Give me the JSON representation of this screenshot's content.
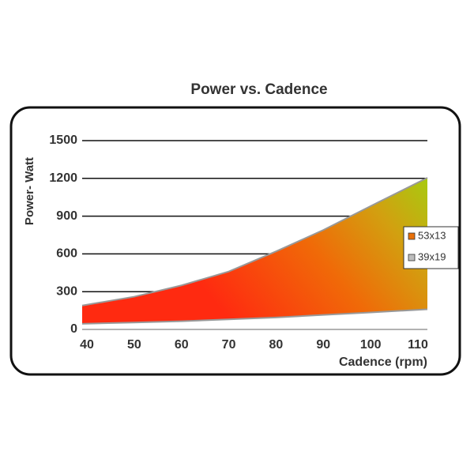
{
  "chart_data": {
    "type": "area-range",
    "title": "Power vs. Cadence",
    "x_label": "Cadence (rpm)",
    "y_label": "Power- Watt",
    "x": [
      39,
      50,
      60,
      70,
      80,
      90,
      100,
      112
    ],
    "series": [
      {
        "name": "53x13",
        "color": "#e8700a",
        "values": [
          190,
          260,
          350,
          460,
          620,
          790,
          980,
          1205
        ]
      },
      {
        "name": "39x19",
        "color": "#bdbdbd",
        "values": [
          45,
          55,
          65,
          80,
          95,
          115,
          135,
          160
        ]
      }
    ],
    "xlim": [
      39,
      112
    ],
    "ylim": [
      0,
      1500
    ],
    "xticks": [
      40,
      50,
      60,
      70,
      80,
      90,
      100,
      110
    ],
    "yticks": [
      0,
      300,
      600,
      900,
      1200,
      1500
    ],
    "grid": true,
    "legend": "right"
  }
}
